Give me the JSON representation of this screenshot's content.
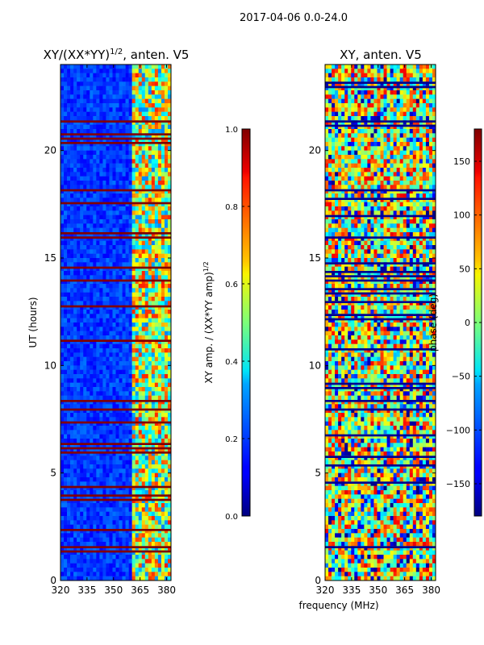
{
  "chart_data": {
    "figure_title": "2017-04-06 0.0-24.0",
    "shared_xlabel": "frequency (MHz)",
    "panels": [
      {
        "type": "heatmap",
        "title": "XY/(XX*YY)",
        "title_superscript": "1/2",
        "title_suffix": ", anten. V5",
        "ylabel": "UT (hours)",
        "xlim": [
          320,
          382.5
        ],
        "ylim": [
          0,
          24
        ],
        "xticks": [
          320,
          335,
          350,
          365,
          380
        ],
        "yticks": [
          0,
          5,
          10,
          15,
          20
        ],
        "colormap": "jet",
        "colorbar": {
          "label": "XY amp. / (XX*YY amp)",
          "label_superscript": "1/2",
          "vmin": 0.0,
          "vmax": 1.0,
          "ticks": [
            "0.0",
            "0.2",
            "0.4",
            "0.6",
            "0.8",
            "1.0"
          ]
        }
      },
      {
        "type": "heatmap",
        "title": "XY, anten. V5",
        "ylabel": "",
        "xlim": [
          320,
          382.5
        ],
        "ylim": [
          0,
          24
        ],
        "xticks": [
          320,
          335,
          350,
          365,
          380
        ],
        "yticks": [
          0,
          5,
          10,
          15,
          20
        ],
        "colormap": "jet",
        "colorbar": {
          "label": "phase (deg)",
          "vmin": -180,
          "vmax": 180,
          "ticks": [
            "−150",
            "−100",
            "−50",
            "0",
            "50",
            "100",
            "150"
          ]
        }
      }
    ]
  }
}
